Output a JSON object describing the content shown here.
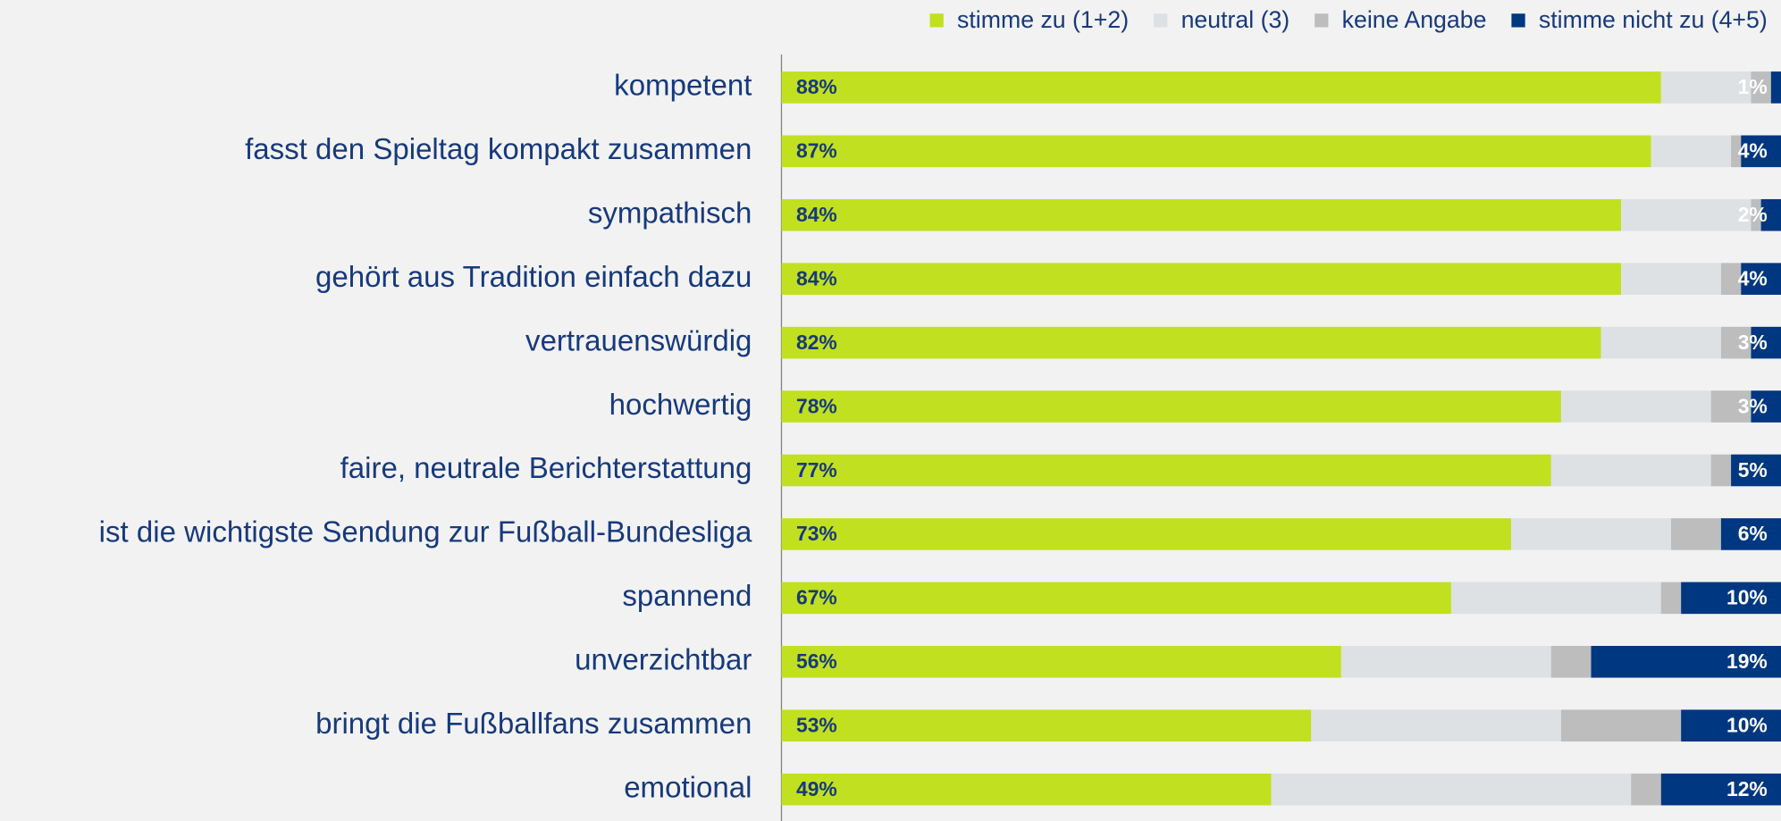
{
  "chart_data": {
    "type": "stacked-bar-horizontal",
    "categories": [
      "kompetent",
      "fasst den Spieltag kompakt zusammen",
      "sympathisch",
      "gehört aus Tradition einfach dazu",
      "vertrauenswürdig",
      "hochwertig",
      "faire, neutrale Berichterstattung",
      "ist die wichtigste Sendung zur Fußball-Bundesliga",
      "spannend",
      "unverzichtbar",
      "bringt die Fußballfans zusammen",
      "emotional"
    ],
    "series": [
      {
        "name": "stimme zu (1+2)",
        "color": "#c1e01f",
        "label_color": "#17397c",
        "values": [
          88,
          87,
          84,
          84,
          82,
          78,
          77,
          73,
          67,
          56,
          53,
          49
        ],
        "value_labels": [
          "88%",
          "87%",
          "84%",
          "84%",
          "82%",
          "78%",
          "77%",
          "73%",
          "67%",
          "56%",
          "53%",
          "49%"
        ]
      },
      {
        "name": "neutral (3)",
        "color": "#dde1e3",
        "values": [
          9,
          8,
          13,
          10,
          12,
          15,
          16,
          16,
          21,
          21,
          25,
          36
        ]
      },
      {
        "name": "keine Angabe",
        "color": "#bdbdbd",
        "values": [
          2,
          1,
          1,
          2,
          3,
          4,
          2,
          5,
          2,
          4,
          12,
          3
        ]
      },
      {
        "name": "stimme nicht zu (4+5)",
        "color": "#003781",
        "label_color": "#ffffff",
        "values": [
          1,
          4,
          2,
          4,
          3,
          3,
          5,
          6,
          10,
          19,
          10,
          12
        ],
        "value_labels": [
          "1%",
          "4%",
          "2%",
          "4%",
          "3%",
          "3%",
          "5%",
          "6%",
          "10%",
          "19%",
          "10%",
          "12%"
        ]
      }
    ],
    "xlim": [
      0,
      100
    ]
  }
}
